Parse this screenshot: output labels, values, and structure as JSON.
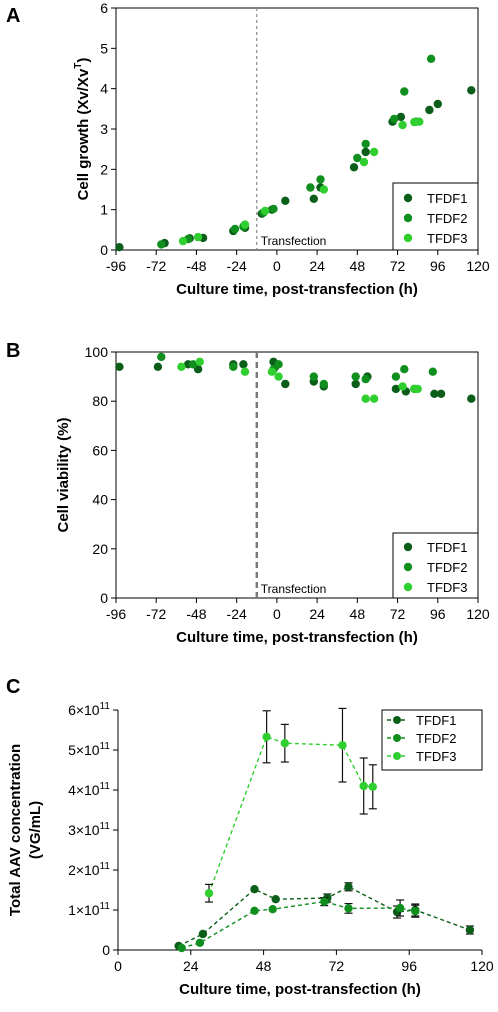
{
  "colors": {
    "TFDF1": "#0b5e1a",
    "TFDF2": "#108f1e",
    "TFDF3": "#2fcf2f"
  },
  "chart_data": [
    {
      "panel": "A",
      "type": "scatter",
      "xlabel": "Culture time, post-transfection  (h)",
      "ylabel": "Cell growth (Xv/Xv",
      "ylabel_sup": "T",
      "ylabel_end": ")",
      "xlim": [
        -96,
        120
      ],
      "ylim": [
        0,
        6
      ],
      "xticks": [
        "-96",
        "-72",
        "-48",
        "-24",
        "0",
        "24",
        "48",
        "72",
        "96",
        "120"
      ],
      "xtick_values": [
        -96,
        -72,
        -48,
        -24,
        0,
        24,
        48,
        72,
        96,
        120
      ],
      "yticks": [
        "0",
        "1",
        "2",
        "3",
        "4",
        "5",
        "6"
      ],
      "ytick_values": [
        0,
        1,
        2,
        3,
        4,
        5,
        6
      ],
      "vline": {
        "x": -12,
        "label": "Transfection"
      },
      "legend_position": "bottom-right",
      "series": [
        {
          "name": "TFDF1",
          "points": [
            [
              -94,
              0.07
            ],
            [
              -67,
              0.17
            ],
            [
              -52,
              0.29
            ],
            [
              -44,
              0.3
            ],
            [
              -26,
              0.47
            ],
            [
              -19,
              0.55
            ],
            [
              -9,
              0.9
            ],
            [
              -3,
              1.0
            ],
            [
              5,
              1.22
            ],
            [
              22,
              1.27
            ],
            [
              26,
              1.55
            ],
            [
              46,
              2.05
            ],
            [
              53,
              2.43
            ],
            [
              69,
              3.18
            ],
            [
              74,
              3.3
            ],
            [
              91,
              3.47
            ],
            [
              96,
              3.62
            ],
            [
              116,
              3.96
            ]
          ]
        },
        {
          "name": "TFDF2",
          "points": [
            [
              -69,
              0.14
            ],
            [
              -53,
              0.27
            ],
            [
              -25,
              0.52
            ],
            [
              -20,
              0.58
            ],
            [
              -8,
              0.93
            ],
            [
              -2,
              1.02
            ],
            [
              20,
              1.55
            ],
            [
              26,
              1.75
            ],
            [
              48,
              2.28
            ],
            [
              53,
              2.63
            ],
            [
              70,
              3.25
            ],
            [
              76,
              3.93
            ],
            [
              83,
              3.18
            ],
            [
              92,
              4.74
            ]
          ]
        },
        {
          "name": "TFDF3",
          "points": [
            [
              -56,
              0.22
            ],
            [
              -47,
              0.32
            ],
            [
              -19,
              0.63
            ],
            [
              -7,
              0.97
            ],
            [
              28,
              1.5
            ],
            [
              52,
              2.18
            ],
            [
              58,
              2.43
            ],
            [
              75,
              3.1
            ],
            [
              82,
              3.17
            ],
            [
              85,
              3.18
            ]
          ]
        }
      ]
    },
    {
      "panel": "B",
      "type": "scatter",
      "xlabel": "Culture time, post-transfection (h)",
      "ylabel": "Cell viability (%)",
      "xlim": [
        -96,
        120
      ],
      "ylim": [
        0,
        100
      ],
      "xticks": [
        "-96",
        "-72",
        "-48",
        "-24",
        "0",
        "24",
        "48",
        "72",
        "96",
        "120"
      ],
      "xtick_values": [
        -96,
        -72,
        -48,
        -24,
        0,
        24,
        48,
        72,
        96,
        120
      ],
      "yticks": [
        "0",
        "20",
        "40",
        "60",
        "80",
        "100"
      ],
      "ytick_values": [
        0,
        20,
        40,
        60,
        80,
        100
      ],
      "vline": {
        "x": -12,
        "label": "Transfection"
      },
      "legend_position": "bottom-right",
      "series": [
        {
          "name": "TFDF1",
          "points": [
            [
              -94,
              94
            ],
            [
              -71,
              94
            ],
            [
              -53,
              95
            ],
            [
              -47,
              93
            ],
            [
              -26,
              95
            ],
            [
              -20,
              95
            ],
            [
              -2,
              96
            ],
            [
              -1,
              94
            ],
            [
              5,
              87
            ],
            [
              22,
              88
            ],
            [
              28,
              86
            ],
            [
              47,
              87
            ],
            [
              54,
              90
            ],
            [
              71,
              85
            ],
            [
              77,
              84
            ],
            [
              94,
              83
            ],
            [
              98,
              83
            ],
            [
              116,
              81
            ]
          ]
        },
        {
          "name": "TFDF2",
          "points": [
            [
              -69,
              98
            ],
            [
              -50,
              95
            ],
            [
              -26,
              94
            ],
            [
              -2,
              93
            ],
            [
              1,
              95
            ],
            [
              22,
              90
            ],
            [
              28,
              87
            ],
            [
              47,
              90
            ],
            [
              53,
              89
            ],
            [
              71,
              90
            ],
            [
              76,
              93
            ],
            [
              82,
              85
            ],
            [
              93,
              92
            ]
          ]
        },
        {
          "name": "TFDF3",
          "points": [
            [
              -57,
              94
            ],
            [
              -46,
              96
            ],
            [
              -19,
              92
            ],
            [
              -3,
              92
            ],
            [
              1,
              90
            ],
            [
              53,
              81
            ],
            [
              58,
              81
            ],
            [
              75,
              86
            ],
            [
              82,
              85
            ],
            [
              84,
              85
            ]
          ]
        }
      ]
    },
    {
      "panel": "C",
      "type": "line",
      "xlabel": "Culture time, post-transfection (h)",
      "ylabel_line1": "Total AAV concentration",
      "ylabel_line2": "(VG/mL)",
      "xlim": [
        0,
        120
      ],
      "ylim": [
        0,
        600000000000.0
      ],
      "xticks": [
        "0",
        "24",
        "48",
        "72",
        "96",
        "120"
      ],
      "xtick_values": [
        0,
        24,
        48,
        72,
        96,
        120
      ],
      "yticks": [
        {
          "value": 0,
          "mant": "0",
          "exp": ""
        },
        {
          "value": 100000000000.0,
          "mant": "1×10",
          "exp": "11"
        },
        {
          "value": 200000000000.0,
          "mant": "2×10",
          "exp": "11"
        },
        {
          "value": 300000000000.0,
          "mant": "3×10",
          "exp": "11"
        },
        {
          "value": 400000000000.0,
          "mant": "4×10",
          "exp": "11"
        },
        {
          "value": 500000000000.0,
          "mant": "5×10",
          "exp": "11"
        },
        {
          "value": 600000000000.0,
          "mant": "6×10",
          "exp": "11"
        }
      ],
      "legend_position": "top-right",
      "series": [
        {
          "name": "TFDF1",
          "points": [
            [
              20,
              10000000000.0,
              0
            ],
            [
              28,
              40000000000.0,
              0
            ],
            [
              45,
              152000000000.0,
              0
            ],
            [
              52,
              127000000000.0,
              0
            ],
            [
              69,
              130000000000.0,
              10000000000.0
            ],
            [
              76,
              158000000000.0,
              10000000000.0
            ],
            [
              92,
              95000000000.0,
              15000000000.0
            ],
            [
              98,
              100000000000.0,
              15000000000.0
            ],
            [
              116,
              50000000000.0,
              10000000000.0
            ]
          ]
        },
        {
          "name": "TFDF2",
          "points": [
            [
              21,
              5000000000.0,
              0
            ],
            [
              27,
              18000000000.0,
              0
            ],
            [
              45,
              98000000000.0,
              0
            ],
            [
              51,
              102000000000.0,
              0
            ],
            [
              68,
              121000000000.0,
              10000000000.0
            ],
            [
              76,
              104000000000.0,
              12000000000.0
            ],
            [
              93,
              105000000000.0,
              20000000000.0
            ],
            [
              98,
              97000000000.0,
              15000000000.0
            ]
          ]
        },
        {
          "name": "TFDF3",
          "points": [
            [
              30,
              142000000000.0,
              22000000000.0
            ],
            [
              49,
              533000000000.0,
              65000000000.0
            ],
            [
              55,
              517000000000.0,
              47000000000.0
            ],
            [
              74,
              512000000000.0,
              92000000000.0
            ],
            [
              81,
              410000000000.0,
              70000000000.0
            ],
            [
              84,
              408000000000.0,
              55000000000.0
            ]
          ]
        }
      ]
    }
  ]
}
